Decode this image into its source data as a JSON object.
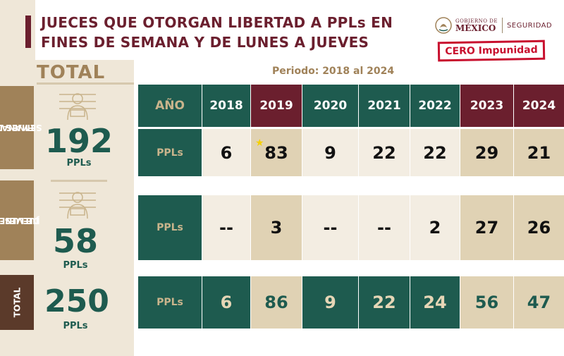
{
  "header": {
    "title_line1": "JUECES QUE OTORGAN LIBERTAD A PPLs EN",
    "title_line2": "FINES DE SEMANA Y DE LUNES A JUEVES",
    "gob_line1": "GOBIERNO DE",
    "gob_line2": "MÉXICO",
    "dependency": "SEGURIDAD",
    "stamp": "CERO Impunidad",
    "period": "Periodo: 2018 al 2024"
  },
  "summary": {
    "total_label": "TOTAL",
    "unit": "PPLs",
    "weekends": {
      "tab": [
        "FINES DE",
        "SEMANA"
      ],
      "value": "192"
    },
    "weekdays": {
      "tab": [
        "DE LUNES A",
        "JUEVES"
      ],
      "value": "58"
    },
    "total": {
      "tab": "TOTAL",
      "value": "250"
    }
  },
  "table": {
    "header_label": "AÑO",
    "row_label": "PPLs",
    "years": [
      "2018",
      "2019",
      "2020",
      "2021",
      "2022",
      "2023",
      "2024"
    ],
    "weekends": [
      "6",
      "83",
      "9",
      "22",
      "22",
      "29",
      "21"
    ],
    "weekdays": [
      "--",
      "3",
      "--",
      "--",
      "2",
      "27",
      "26"
    ],
    "totals": [
      "6",
      "86",
      "9",
      "22",
      "24",
      "56",
      "47"
    ]
  },
  "colors": {
    "green": "#1e5b4f",
    "maroon": "#6b1f2e",
    "gold": "#a08259",
    "tan": "#e0d2b4",
    "cream": "#f3ede2",
    "stamp_red": "#c8102e"
  }
}
